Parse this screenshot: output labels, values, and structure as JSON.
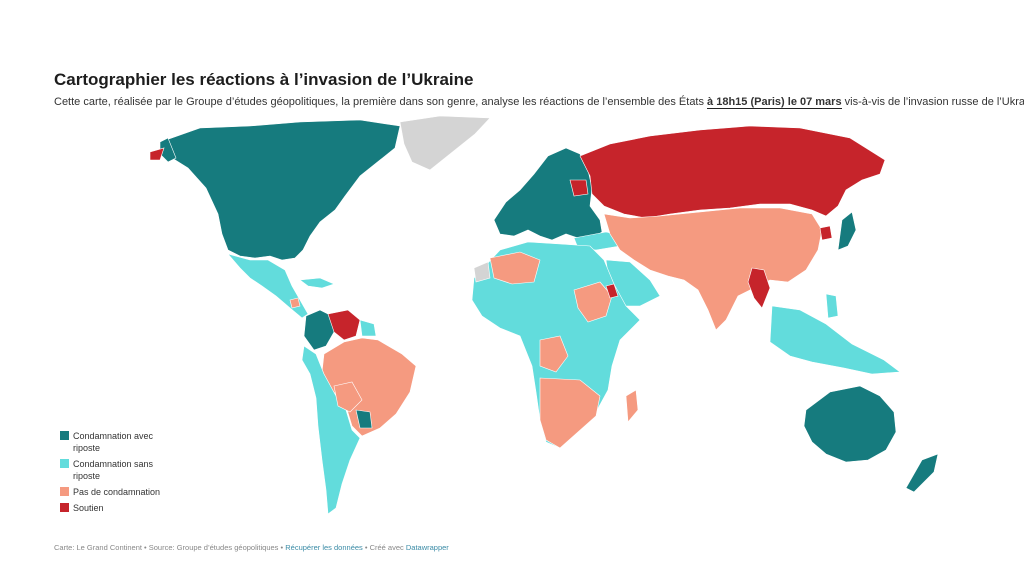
{
  "title": "Cartographier les réactions à l’invasion de l’Ukraine",
  "subtitle": {
    "part1": "Cette carte, réalisée par le Groupe d’études géopolitiques, la première dans son genre, analyse les réactions de l’ensemble des États ",
    "highlight": "à 18h15 (Paris) le 07 mars",
    "part2": " vis-à-vis de l’invasion russe de l’Ukraine."
  },
  "colors": {
    "condamnation_avec": "#167b7e",
    "condamnation_sans": "#62dcdc",
    "pas_de": "#f59a80",
    "soutien": "#c6242b",
    "no_data": "#d4d4d4"
  },
  "legend": [
    {
      "label": "Condamnation avec riposte",
      "key": "condamnation_avec"
    },
    {
      "label": "Condamnation sans riposte",
      "key": "condamnation_sans"
    },
    {
      "label": "Pas de condamnation",
      "key": "pas_de"
    },
    {
      "label": "Soutien",
      "key": "soutien"
    }
  ],
  "footer": {
    "prefix": "Carte: Le Grand Continent • Source: Groupe d’études géopolitiques • ",
    "link1": "Récupérer les données",
    "middle": " • Créé avec ",
    "link2": "Datawrapper"
  }
}
